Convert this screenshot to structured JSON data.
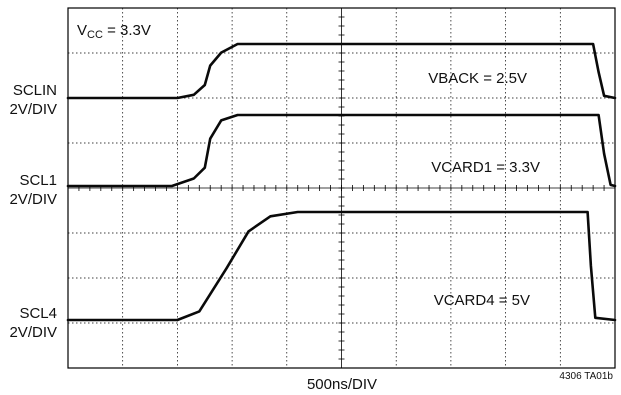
{
  "chart_data": {
    "type": "line",
    "title": "",
    "xlabel": "500ns/DIV",
    "x_divisions": 10,
    "y_divisions": 8,
    "x_unit": "ns",
    "x_per_div": 500,
    "xlim": [
      0,
      5000
    ],
    "grid": true,
    "supply_label": {
      "prefix": "V",
      "subscript": "CC",
      "suffix": " = 3.3V"
    },
    "figure_id": "4306 TA01b",
    "series": [
      {
        "name": "SCLIN",
        "scale": "2V/DIV",
        "annotation": "VBACK = 2.5V",
        "low_div": 0.0,
        "high_div": 2.5,
        "points": [
          [
            0,
            0.0
          ],
          [
            1000,
            0.0
          ],
          [
            1150,
            0.15
          ],
          [
            1250,
            0.6
          ],
          [
            1300,
            1.5
          ],
          [
            1400,
            2.1
          ],
          [
            1550,
            2.5
          ],
          [
            4800,
            2.5
          ],
          [
            4850,
            1.2
          ],
          [
            4900,
            0.1
          ],
          [
            5000,
            0.0
          ]
        ]
      },
      {
        "name": "SCL1",
        "scale": "2V/DIV",
        "annotation": "VCARD1 = 3.3V",
        "low_div": 0.0,
        "high_div": 3.3,
        "points": [
          [
            0,
            0.0
          ],
          [
            950,
            0.0
          ],
          [
            1150,
            0.35
          ],
          [
            1250,
            0.85
          ],
          [
            1300,
            2.2
          ],
          [
            1400,
            3.05
          ],
          [
            1550,
            3.3
          ],
          [
            4850,
            3.3
          ],
          [
            4900,
            1.5
          ],
          [
            4960,
            0.05
          ],
          [
            5000,
            0.0
          ]
        ]
      },
      {
        "name": "SCL4",
        "scale": "2V/DIV",
        "annotation": "VCARD4 = 5V",
        "low_div": 0.0,
        "high_div": 5.0,
        "points": [
          [
            0,
            0.0
          ],
          [
            1000,
            0.0
          ],
          [
            1200,
            0.4
          ],
          [
            1450,
            2.4
          ],
          [
            1650,
            4.1
          ],
          [
            1850,
            4.8
          ],
          [
            2100,
            5.0
          ],
          [
            4750,
            5.0
          ],
          [
            4780,
            2.5
          ],
          [
            4820,
            0.1
          ],
          [
            5000,
            0.0
          ]
        ]
      }
    ]
  }
}
